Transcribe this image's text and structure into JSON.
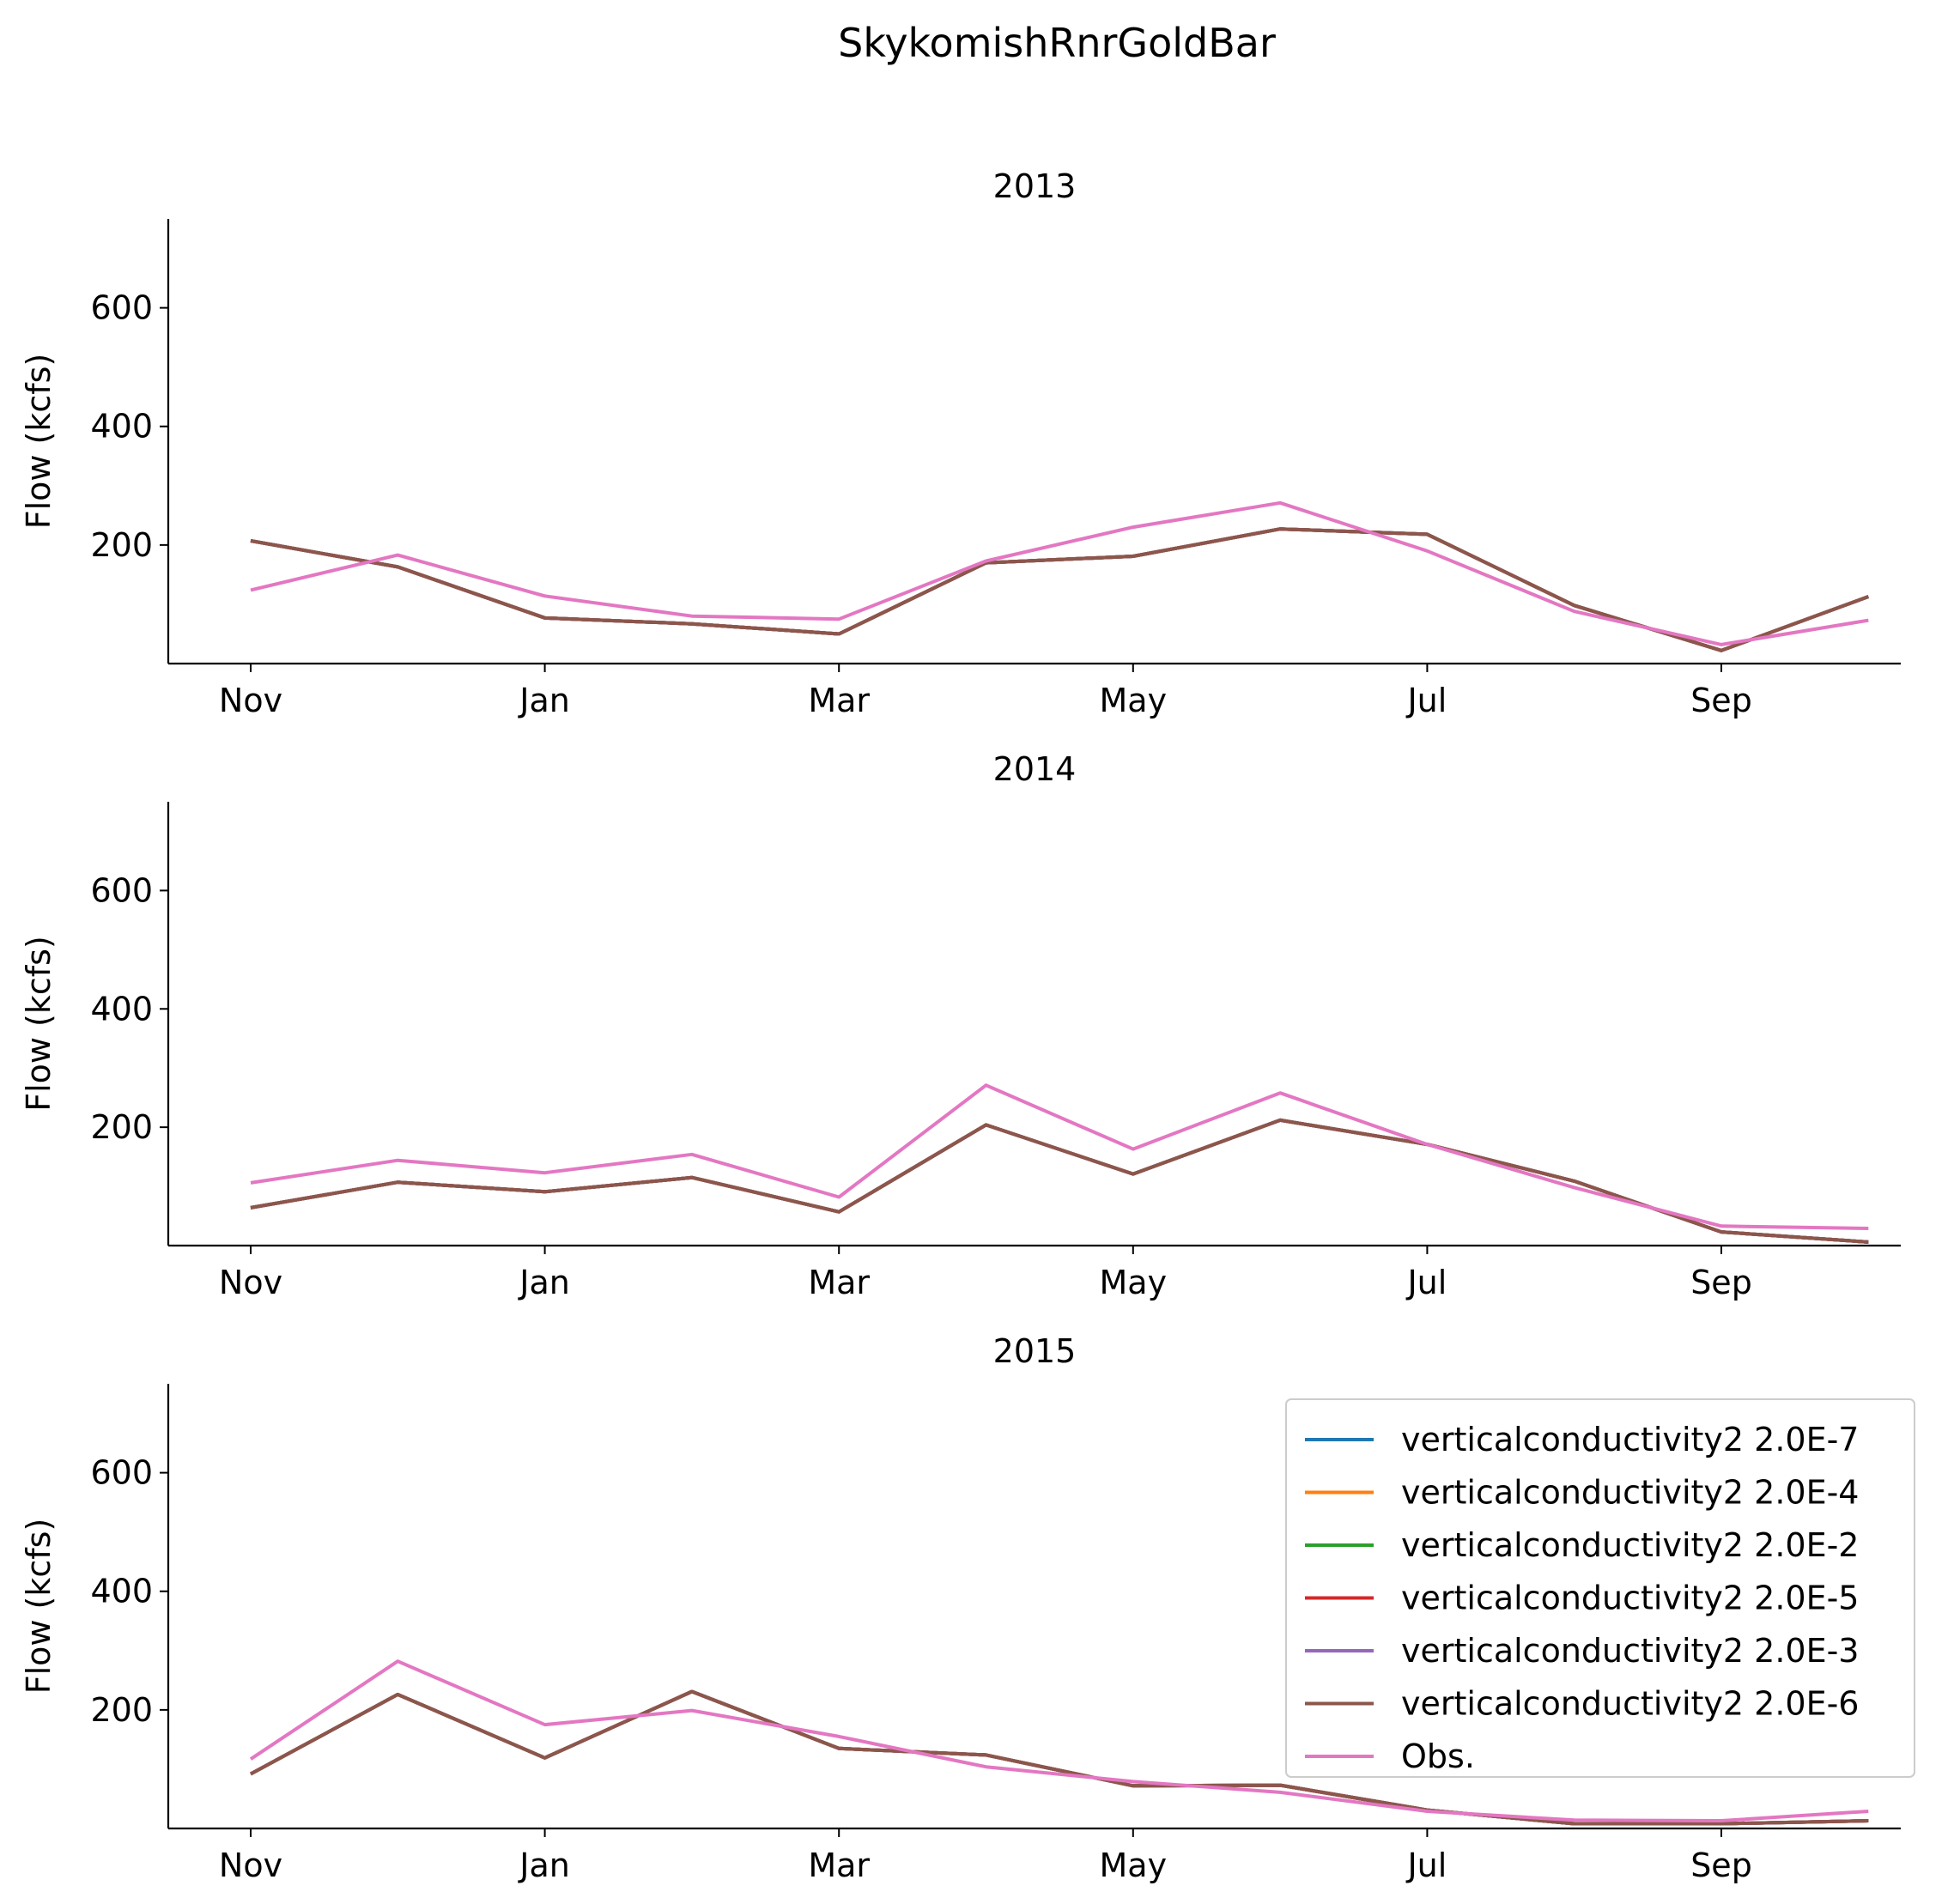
{
  "chart_data": {
    "type": "line",
    "suptitle": "SkykomishRnrGoldBar",
    "x_tick_labels": [
      "Nov",
      "Jan",
      "Mar",
      "May",
      "Jul",
      "Sep"
    ],
    "x_categories": [
      "Nov",
      "Dec",
      "Jan",
      "Feb",
      "Mar",
      "Apr",
      "May",
      "Jun",
      "Jul",
      "Aug",
      "Sep",
      "Oct"
    ],
    "ylabel": "Flow (kcfs)",
    "y_ticks": [
      200,
      400,
      600
    ],
    "ylim": [
      0,
      750
    ],
    "grid": false,
    "legend_placement": "upper right of bottom panel",
    "colors": {
      "vc_2e7": "#1f77b4",
      "vc_2e4": "#ff7f0e",
      "vc_2e2": "#2ca02c",
      "vc_2e5": "#d62728",
      "vc_2e3": "#9467bd",
      "vc_2e6": "#8c564b",
      "obs": "#e377c2"
    },
    "legend": [
      {
        "key": "vc_2e7",
        "label": "verticalconductivity2 2.0E-7"
      },
      {
        "key": "vc_2e4",
        "label": "verticalconductivity2 2.0E-4"
      },
      {
        "key": "vc_2e2",
        "label": "verticalconductivity2 2.0E-2"
      },
      {
        "key": "vc_2e5",
        "label": "verticalconductivity2 2.0E-5"
      },
      {
        "key": "vc_2e3",
        "label": "verticalconductivity2 2.0E-3"
      },
      {
        "key": "vc_2e6",
        "label": "verticalconductivity2 2.0E-6"
      },
      {
        "key": "obs",
        "label": "Obs."
      }
    ],
    "panels": [
      {
        "title": "2013",
        "series": [
          {
            "key": "vc_2e7",
            "values": [
              207,
              163,
              77,
              67,
              50,
              170,
              181,
              227,
              218,
              98,
              22,
              113
            ]
          },
          {
            "key": "vc_2e4",
            "values": [
              207,
              163,
              77,
              67,
              50,
              170,
              181,
              227,
              218,
              98,
              22,
              113
            ]
          },
          {
            "key": "vc_2e2",
            "values": [
              207,
              163,
              77,
              67,
              50,
              170,
              181,
              227,
              218,
              98,
              22,
              113
            ]
          },
          {
            "key": "vc_2e5",
            "values": [
              207,
              163,
              77,
              67,
              50,
              170,
              181,
              227,
              218,
              98,
              22,
              113
            ]
          },
          {
            "key": "vc_2e3",
            "values": [
              207,
              163,
              77,
              67,
              50,
              170,
              181,
              227,
              218,
              98,
              22,
              113
            ]
          },
          {
            "key": "vc_2e6",
            "values": [
              207,
              163,
              77,
              67,
              50,
              170,
              181,
              227,
              218,
              98,
              22,
              113
            ]
          },
          {
            "key": "obs",
            "values": [
              124,
              183,
              114,
              80,
              75,
              173,
              230,
              271,
              190,
              88,
              32,
              73
            ]
          }
        ]
      },
      {
        "title": "2014",
        "series": [
          {
            "key": "vc_2e7",
            "values": [
              64,
              107,
              91,
              115,
              57,
              204,
              121,
              212,
              171,
              109,
              23,
              6
            ]
          },
          {
            "key": "vc_2e4",
            "values": [
              64,
              107,
              91,
              115,
              57,
              204,
              121,
              212,
              171,
              109,
              23,
              6
            ]
          },
          {
            "key": "vc_2e2",
            "values": [
              64,
              107,
              91,
              115,
              57,
              204,
              121,
              212,
              171,
              109,
              23,
              6
            ]
          },
          {
            "key": "vc_2e5",
            "values": [
              64,
              107,
              91,
              115,
              57,
              204,
              121,
              212,
              171,
              109,
              23,
              6
            ]
          },
          {
            "key": "vc_2e3",
            "values": [
              64,
              107,
              91,
              115,
              57,
              204,
              121,
              212,
              171,
              109,
              23,
              6
            ]
          },
          {
            "key": "vc_2e6",
            "values": [
              64,
              107,
              91,
              115,
              57,
              204,
              121,
              212,
              171,
              109,
              23,
              6
            ]
          },
          {
            "key": "obs",
            "values": [
              106,
              144,
              123,
              154,
              82,
              271,
              163,
              258,
              171,
              98,
              33,
              29
            ]
          }
        ]
      },
      {
        "title": "2015",
        "series": [
          {
            "key": "vc_2e7",
            "values": [
              92,
              226,
              119,
              231,
              135,
              124,
              72,
              73,
              31,
              8,
              8,
              13
            ]
          },
          {
            "key": "vc_2e4",
            "values": [
              92,
              226,
              119,
              231,
              135,
              124,
              72,
              73,
              31,
              8,
              8,
              13
            ]
          },
          {
            "key": "vc_2e2",
            "values": [
              92,
              226,
              119,
              231,
              135,
              124,
              72,
              73,
              31,
              8,
              8,
              13
            ]
          },
          {
            "key": "vc_2e5",
            "values": [
              92,
              226,
              119,
              231,
              135,
              124,
              72,
              73,
              31,
              8,
              8,
              13
            ]
          },
          {
            "key": "vc_2e3",
            "values": [
              92,
              226,
              119,
              231,
              135,
              124,
              72,
              73,
              31,
              8,
              8,
              13
            ]
          },
          {
            "key": "vc_2e6",
            "values": [
              92,
              226,
              119,
              231,
              135,
              124,
              72,
              73,
              31,
              8,
              8,
              13
            ]
          },
          {
            "key": "obs",
            "values": [
              117,
              282,
              175,
              199,
              155,
              104,
              79,
              61,
              29,
              14,
              13,
              29
            ]
          }
        ]
      }
    ]
  }
}
